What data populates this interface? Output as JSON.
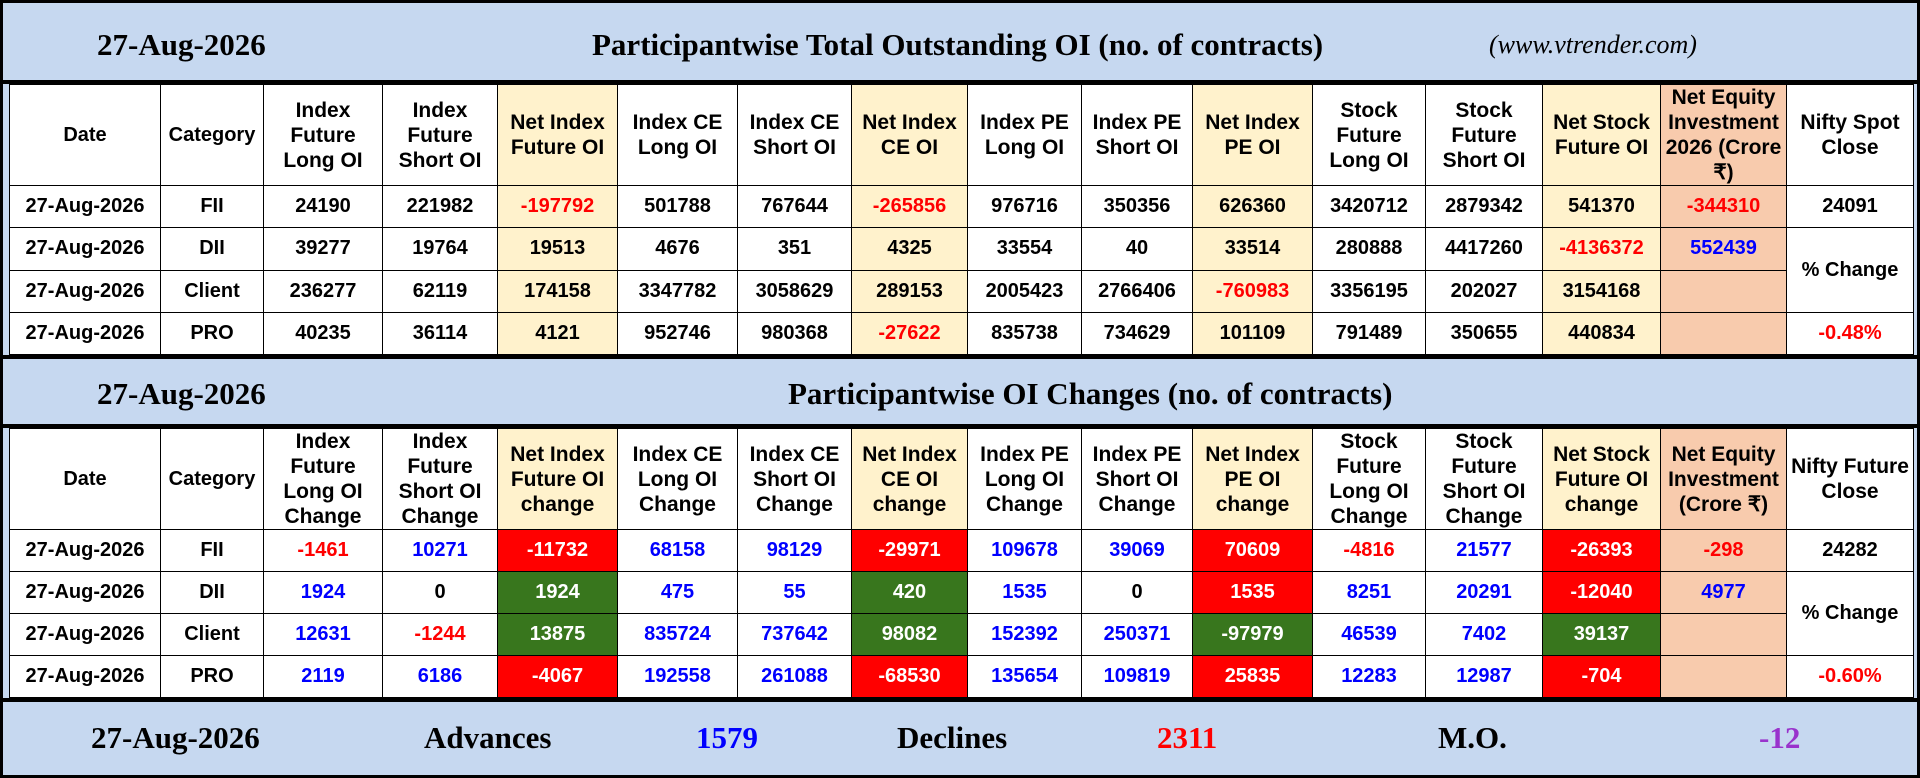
{
  "section1": {
    "date": "27-Aug-2026",
    "title": "Participantwise Total Outstanding OI (no. of contracts)",
    "website": "(www.vtrender.com)",
    "headers": [
      "Date",
      "Category",
      "Index Future Long OI",
      "Index Future Short OI",
      "Net Index Future OI",
      "Index CE Long OI",
      "Index CE Short OI",
      "Net Index CE OI",
      "Index PE Long OI",
      "Index PE Short OI",
      "Net Index PE OI",
      "Stock Future Long OI",
      "Stock Future Short OI",
      "Net Stock Future OI",
      "Net Equity Investment 2026 (Crore ₹)",
      "Nifty Spot Close"
    ],
    "rows": [
      {
        "date": "27-Aug-2026",
        "category": "FII",
        "values": [
          "24190",
          "221982",
          "-197792",
          "501788",
          "767644",
          "-265856",
          "976716",
          "350356",
          "626360",
          "3420712",
          "2879342",
          "541370"
        ],
        "net_equity": "-344310"
      },
      {
        "date": "27-Aug-2026",
        "category": "DII",
        "values": [
          "39277",
          "19764",
          "19513",
          "4676",
          "351",
          "4325",
          "33554",
          "40",
          "33514",
          "280888",
          "4417260",
          "-4136372"
        ],
        "net_equity": "552439"
      },
      {
        "date": "27-Aug-2026",
        "category": "Client",
        "values": [
          "236277",
          "62119",
          "174158",
          "3347782",
          "3058629",
          "289153",
          "2005423",
          "2766406",
          "-760983",
          "3356195",
          "202027",
          "3154168"
        ],
        "net_equity": ""
      },
      {
        "date": "27-Aug-2026",
        "category": "PRO",
        "values": [
          "40235",
          "36114",
          "4121",
          "952746",
          "980368",
          "-27622",
          "835738",
          "734629",
          "101109",
          "791489",
          "350655",
          "440834"
        ],
        "net_equity": ""
      }
    ],
    "nifty_value": "24091",
    "pct_label": "% Change",
    "pct_value": "-0.48%"
  },
  "section2": {
    "date": "27-Aug-2026",
    "title": "Participantwise OI Changes (no. of contracts)",
    "headers": [
      "Date",
      "Category",
      "Index Future Long OI Change",
      "Index Future Short OI Change",
      "Net Index Future OI change",
      "Index CE Long OI Change",
      "Index CE Short OI Change",
      "Net Index CE OI change",
      "Index PE Long OI Change",
      "Index PE Short OI Change",
      "Net Index PE OI change",
      "Stock Future Long OI Change",
      "Stock Future Short OI Change",
      "Net Stock Future OI change",
      "Net Equity Investment (Crore ₹)",
      "Nifty Future Close"
    ],
    "rows": [
      {
        "date": "27-Aug-2026",
        "category": "FII",
        "values": [
          "-1461",
          "10271",
          "-11732",
          "68158",
          "98129",
          "-29971",
          "109678",
          "39069",
          "70609",
          "-4816",
          "21577",
          "-26393"
        ],
        "net_equity": "-298"
      },
      {
        "date": "27-Aug-2026",
        "category": "DII",
        "values": [
          "1924",
          "0",
          "1924",
          "475",
          "55",
          "420",
          "1535",
          "0",
          "1535",
          "8251",
          "20291",
          "-12040"
        ],
        "net_equity": "4977"
      },
      {
        "date": "27-Aug-2026",
        "category": "Client",
        "values": [
          "12631",
          "-1244",
          "13875",
          "835724",
          "737642",
          "98082",
          "152392",
          "250371",
          "-97979",
          "46539",
          "7402",
          "39137"
        ],
        "net_equity": ""
      },
      {
        "date": "27-Aug-2026",
        "category": "PRO",
        "values": [
          "2119",
          "6186",
          "-4067",
          "192558",
          "261088",
          "-68530",
          "135654",
          "109819",
          "25835",
          "12283",
          "12987",
          "-704"
        ],
        "net_equity": ""
      }
    ],
    "nifty_value": "24282",
    "pct_label": "% Change",
    "pct_value": "-0.60%"
  },
  "footer": {
    "date": "27-Aug-2026",
    "advances_label": "Advances",
    "advances_value": "1579",
    "declines_label": "Declines",
    "declines_value": "2311",
    "mo_label": "M.O.",
    "mo_value": "-12"
  },
  "colors": {
    "panel_bg": "#c6d8f0",
    "net_col_bg": "#fff2cc",
    "equity_col_bg": "#f8cbad",
    "negative_text": "#ff0000",
    "positive_text": "#0000ff",
    "cell_negative_bg": "#ff0000",
    "cell_positive_bg": "#38761d",
    "mo_text": "#9933cc"
  }
}
